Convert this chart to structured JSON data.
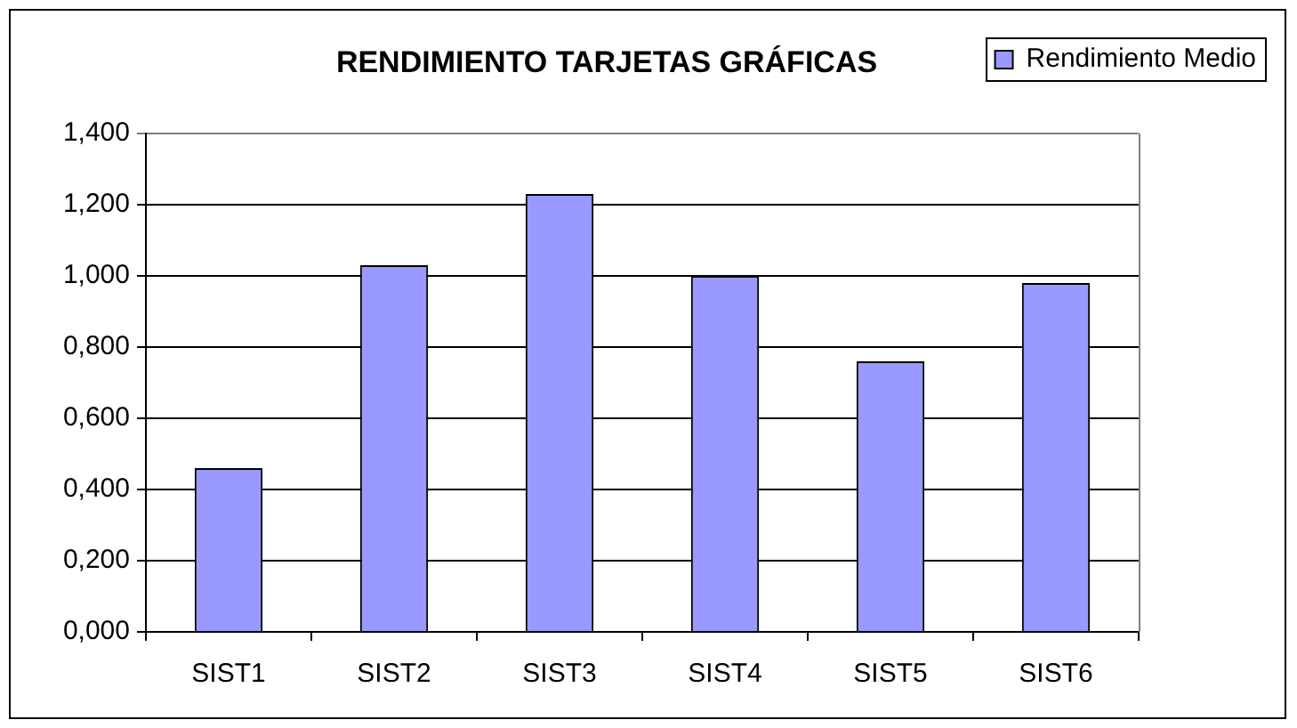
{
  "chart_data": {
    "type": "bar",
    "title": "RENDIMIENTO TARJETAS GRÁFICAS",
    "categories": [
      "SIST1",
      "SIST2",
      "SIST3",
      "SIST4",
      "SIST5",
      "SIST6"
    ],
    "series": [
      {
        "name": "Rendimiento Medio",
        "color": "#9999ff",
        "values": [
          0.46,
          1.03,
          1.23,
          1.0,
          0.76,
          0.98
        ]
      }
    ],
    "ylim": [
      0,
      1.4
    ],
    "yticks": [
      {
        "value": 0,
        "label": "0,000"
      },
      {
        "value": 0.2,
        "label": "0,200"
      },
      {
        "value": 0.4,
        "label": "0,400"
      },
      {
        "value": 0.6,
        "label": "0,600"
      },
      {
        "value": 0.8,
        "label": "0,800"
      },
      {
        "value": 1.0,
        "label": "1,000"
      },
      {
        "value": 1.2,
        "label": "1,200"
      },
      {
        "value": 1.4,
        "label": "1,400"
      }
    ],
    "grid": "y",
    "legend": "top right"
  }
}
